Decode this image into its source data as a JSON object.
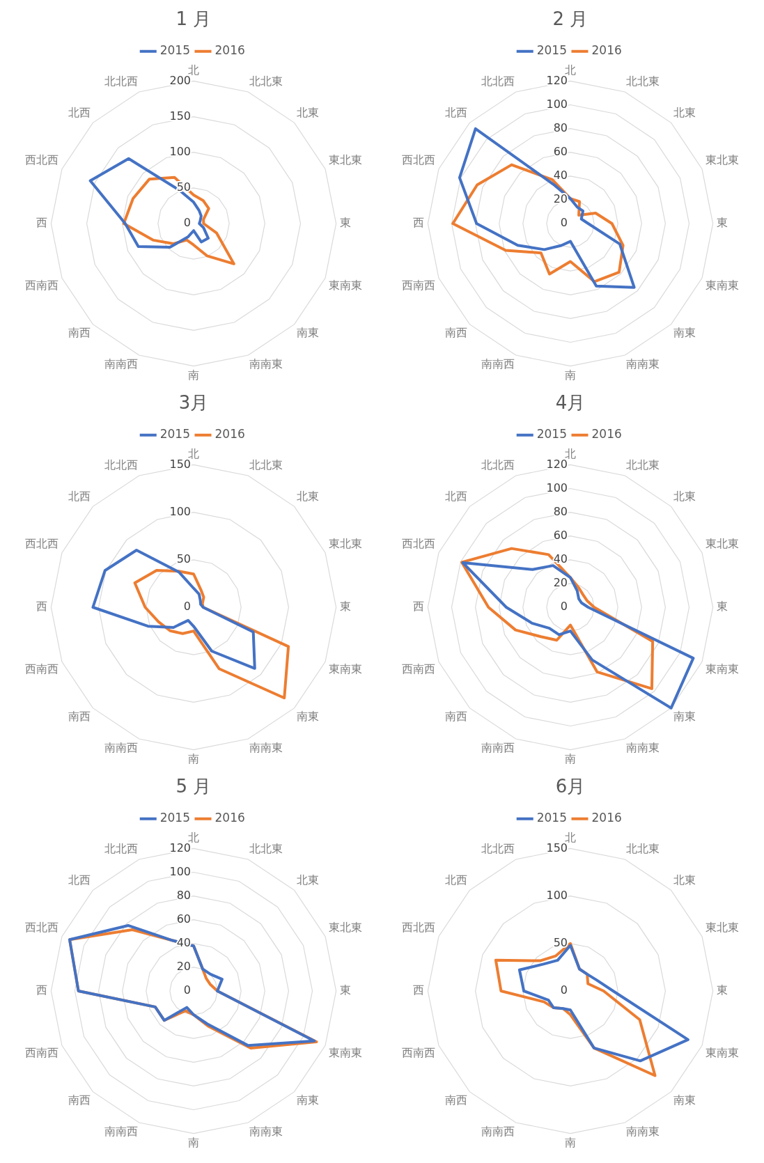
{
  "chart_data": [
    {
      "type": "radar",
      "title": "1 月",
      "categories": [
        "北",
        "北北東",
        "北東",
        "東北東",
        "東",
        "東南東",
        "南東",
        "南南東",
        "南",
        "南南西",
        "南西",
        "西南西",
        "西",
        "西北西",
        "北西",
        "北北西"
      ],
      "ylim": [
        0,
        200
      ],
      "yticks": [
        0,
        50,
        100,
        150,
        200
      ],
      "grid": true,
      "legend": "top",
      "marker": "none",
      "series": [
        {
          "name": "2015",
          "color": "#4472c4",
          "values": [
            30,
            20,
            15,
            10,
            8,
            15,
            29,
            28,
            10,
            20,
            47,
            84,
            96,
            157,
            129,
            50
          ]
        },
        {
          "name": "2016",
          "color": "#ed7d31",
          "values": [
            40,
            35,
            30,
            15,
            14,
            35,
            80,
            49,
            30,
            25,
            40,
            61,
            98,
            92,
            88,
            70
          ]
        }
      ]
    },
    {
      "type": "radar",
      "title": "2 月",
      "categories": [
        "北",
        "北北東",
        "北東",
        "東北東",
        "東",
        "東南東",
        "南東",
        "南南東",
        "南",
        "南南西",
        "南西",
        "西南西",
        "西",
        "西北西",
        "北西",
        "北北西"
      ],
      "ylim": [
        0,
        120
      ],
      "yticks": [
        0,
        20,
        40,
        60,
        80,
        100,
        120
      ],
      "grid": true,
      "legend": "top",
      "marker": "none",
      "series": [
        {
          "name": "2015",
          "color": "#4472c4",
          "values": [
            21,
            15,
            15,
            10,
            15,
            45,
            76,
            57,
            15,
            20,
            31,
            48,
            79,
            101,
            113,
            35
          ]
        },
        {
          "name": "2016",
          "color": "#ed7d31",
          "values": [
            21,
            20,
            10,
            23,
            35,
            48,
            58,
            53,
            32,
            46,
            35,
            59,
            99,
            85,
            70,
            40
          ]
        }
      ]
    },
    {
      "type": "radar",
      "title": "3月",
      "categories": [
        "北",
        "北北東",
        "北東",
        "東北東",
        "東",
        "東南東",
        "南東",
        "南南東",
        "南",
        "南南西",
        "南西",
        "西南西",
        "西",
        "西北西",
        "北西",
        "北北西"
      ],
      "ylim": [
        0,
        150
      ],
      "yticks": [
        0,
        50,
        100,
        150
      ],
      "grid": true,
      "legend": "top",
      "marker": "none",
      "series": [
        {
          "name": "2015",
          "color": "#4472c4",
          "values": [
            20,
            15,
            10,
            8,
            10,
            68,
            91,
            50,
            20,
            15,
            30,
            52,
            106,
            101,
            85,
            40
          ]
        },
        {
          "name": "2016",
          "color": "#ed7d31",
          "values": [
            35,
            20,
            15,
            10,
            10,
            108,
            135,
            70,
            25,
            30,
            35,
            40,
            51,
            67,
            55,
            41
          ]
        }
      ]
    },
    {
      "type": "radar",
      "title": "4月",
      "categories": [
        "北",
        "北北東",
        "北東",
        "東北東",
        "東",
        "東南東",
        "南東",
        "南南東",
        "南",
        "南南西",
        "南西",
        "西南西",
        "西",
        "西北西",
        "北西",
        "北北西"
      ],
      "ylim": [
        0,
        120
      ],
      "yticks": [
        0,
        20,
        40,
        60,
        80,
        100,
        120
      ],
      "grid": true,
      "legend": "top",
      "marker": "none",
      "series": [
        {
          "name": "2015",
          "color": "#4472c4",
          "values": [
            25,
            15,
            10,
            10,
            15,
            112,
            120,
            48,
            20,
            25,
            25,
            35,
            54,
            98,
            45,
            38
          ]
        },
        {
          "name": "2016",
          "color": "#ed7d31",
          "values": [
            25,
            18,
            15,
            15,
            20,
            75,
            97,
            59,
            15,
            30,
            35,
            50,
            69,
            99,
            70,
            48
          ]
        }
      ]
    },
    {
      "type": "radar",
      "title": "5 月",
      "categories": [
        "北",
        "北北東",
        "北東",
        "東北東",
        "東",
        "東南東",
        "南東",
        "南南東",
        "南",
        "南南西",
        "南西",
        "西南西",
        "西",
        "西北西",
        "北西",
        "北北西"
      ],
      "ylim": [
        0,
        120
      ],
      "yticks": [
        0,
        20,
        40,
        60,
        80,
        100,
        120
      ],
      "grid": true,
      "legend": "top",
      "marker": "none",
      "series": [
        {
          "name": "2015",
          "color": "#4472c4",
          "values": [
            38,
            20,
            20,
            26,
            20,
            110,
            65,
            30,
            20,
            15,
            35,
            35,
            97,
            113,
            78,
            46
          ]
        },
        {
          "name": "2016",
          "color": "#ed7d31",
          "values": [
            38,
            20,
            15,
            15,
            20,
            112,
            68,
            32,
            20,
            18,
            35,
            35,
            97,
            113,
            73,
            46
          ]
        }
      ]
    },
    {
      "type": "radar",
      "title": "6月",
      "categories": [
        "北",
        "北北東",
        "北東",
        "東北東",
        "東",
        "東南東",
        "南東",
        "南南東",
        "南",
        "南南西",
        "南西",
        "西南西",
        "西",
        "西北西",
        "北西",
        "北北西"
      ],
      "ylim": [
        0,
        150
      ],
      "yticks": [
        0,
        50,
        100,
        150
      ],
      "grid": true,
      "legend": "top",
      "marker": "none",
      "series": [
        {
          "name": "2015",
          "color": "#4472c4",
          "values": [
            48,
            25,
            25,
            30,
            45,
            134,
            104,
            65,
            20,
            20,
            25,
            25,
            49,
            58,
            40,
            35
          ]
        },
        {
          "name": "2016",
          "color": "#ed7d31",
          "values": [
            50,
            25,
            25,
            20,
            35,
            79,
            126,
            65,
            25,
            20,
            25,
            30,
            73,
            85,
            45,
            40
          ]
        }
      ]
    }
  ]
}
